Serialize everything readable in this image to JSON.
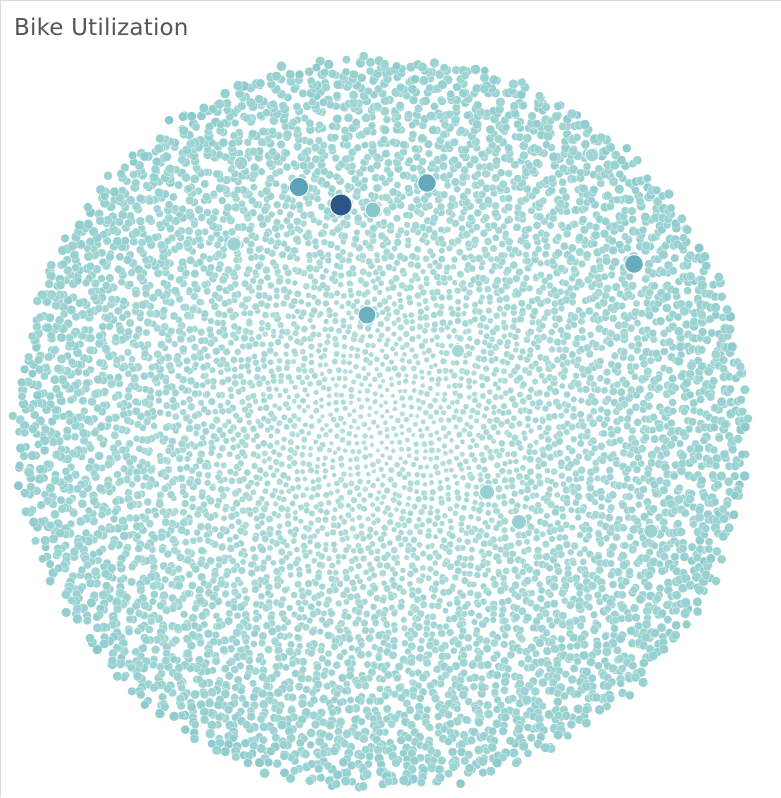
{
  "chart_title": "Bike Utilization",
  "chart_data": {
    "type": "packed-bubble",
    "title": "Bike Utilization",
    "description_note_free": true,
    "color_scale": {
      "low": "#c3e6e1",
      "mid": "#96d0d0",
      "high": "#2e7fa8",
      "max": "#2b5687"
    },
    "bubble_count_estimate": 7000,
    "highlighted_bubbles": [
      {
        "level": 1.0,
        "size": 1.0
      },
      {
        "level": 0.75,
        "size": 0.8
      },
      {
        "level": 0.72,
        "size": 0.75
      },
      {
        "level": 0.7,
        "size": 0.75
      },
      {
        "level": 0.68,
        "size": 0.7
      },
      {
        "level": 0.55,
        "size": 0.55
      },
      {
        "level": 0.5,
        "size": 0.5
      },
      {
        "level": 0.5,
        "size": 0.5
      },
      {
        "level": 0.45,
        "size": 0.45
      },
      {
        "level": 0.45,
        "size": 0.45
      },
      {
        "level": 0.4,
        "size": 0.4
      },
      {
        "level": 0.4,
        "size": 0.4
      },
      {
        "level": 0.35,
        "size": 0.35
      }
    ]
  }
}
